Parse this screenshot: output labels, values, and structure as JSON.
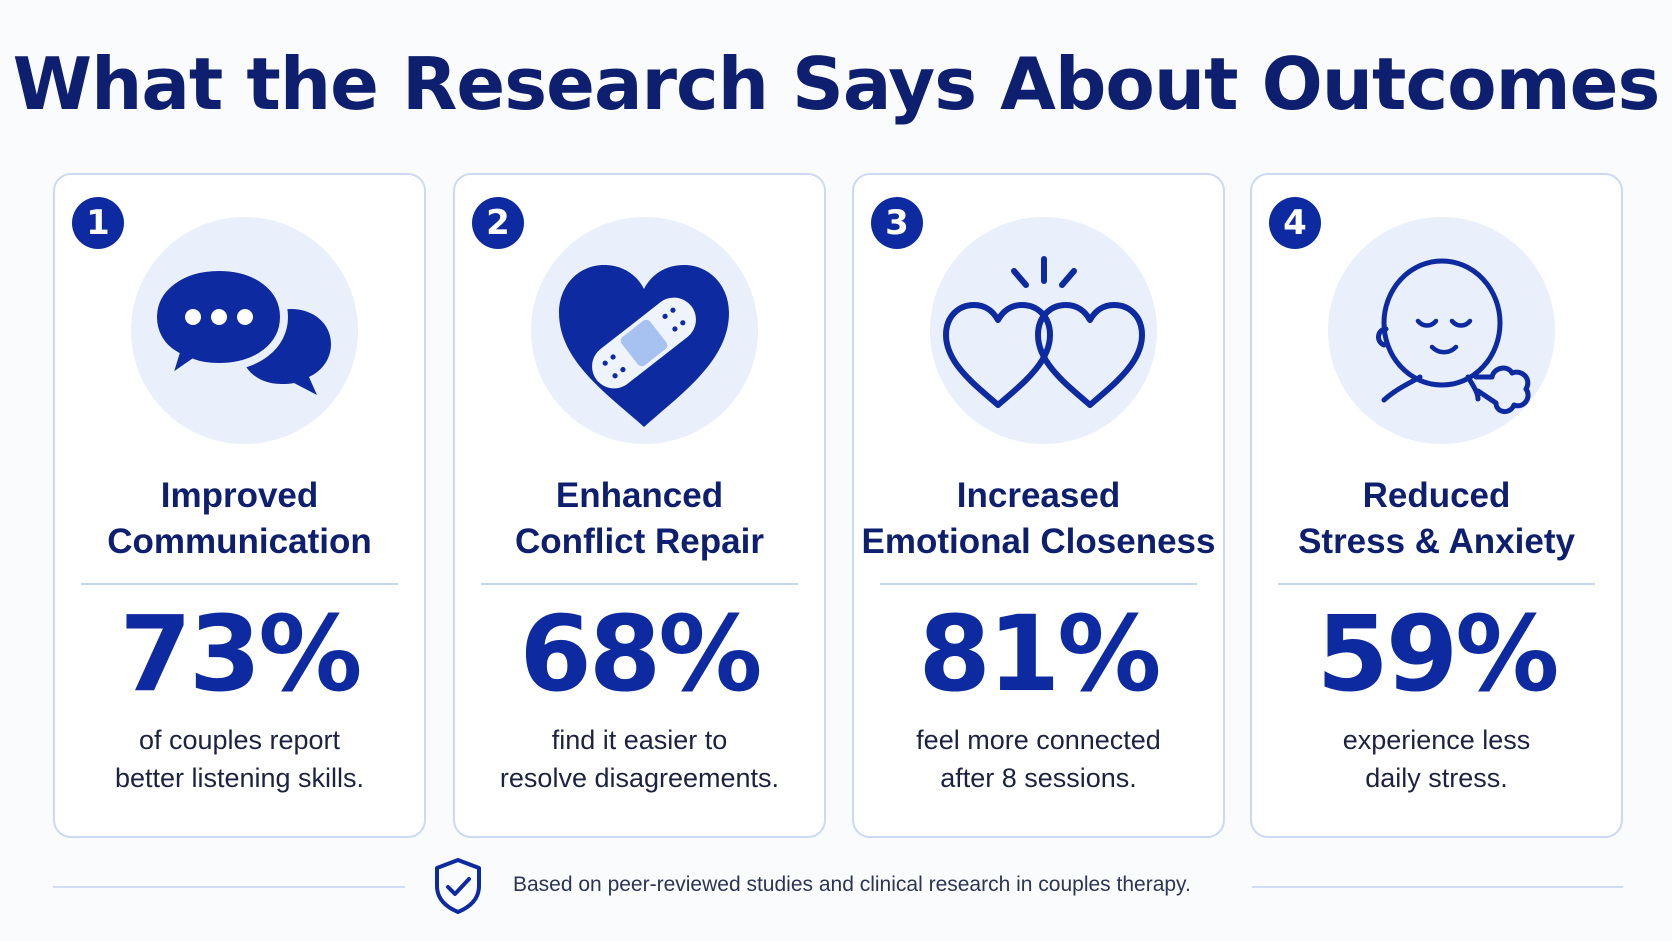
{
  "title": "What the Research Says About Outcomes",
  "cards": [
    {
      "number": "1",
      "icon": "speech-bubbles-icon",
      "heading_line1": "Improved",
      "heading_line2": "Communication",
      "stat": "73%",
      "desc_line1": "of couples report",
      "desc_line2": "better listening skills."
    },
    {
      "number": "2",
      "icon": "bandaged-heart-icon",
      "heading_line1": "Enhanced",
      "heading_line2": "Conflict Repair",
      "stat": "68%",
      "desc_line1": "find it easier to",
      "desc_line2": "resolve disagreements."
    },
    {
      "number": "3",
      "icon": "linked-hearts-icon",
      "heading_line1": "Increased",
      "heading_line2": "Emotional Closeness",
      "stat": "81%",
      "desc_line1": "feel more connected",
      "desc_line2": "after 8 sessions."
    },
    {
      "number": "4",
      "icon": "calm-face-icon",
      "heading_line1": "Reduced",
      "heading_line2": "Stress & Anxiety",
      "stat": "59%",
      "desc_line1": "experience less",
      "desc_line2": "daily stress."
    }
  ],
  "footer": {
    "icon": "shield-check-icon",
    "text": "Based on peer-reviewed studies and clinical research in couples therapy."
  },
  "colors": {
    "navy": "#0d1f6e",
    "accent_blue": "#0e2aa0",
    "icon_circle": "#e9f0fb",
    "card_border": "#cbd9f3"
  }
}
